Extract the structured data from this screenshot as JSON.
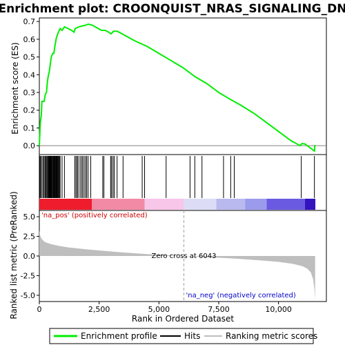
{
  "chart_data": {
    "type": "line",
    "title": "Enrichment plot: CROONQUIST_NRAS_SIGNALING_DN",
    "colors": {
      "enrichment": "#00ee00",
      "hits": "#000000",
      "metric_fill": "#bebebe",
      "zero_line": "#808080",
      "pos_label": "#cc0000",
      "neg_label": "#0000cc"
    },
    "es_panel": {
      "ylabel": "Enrichment score (ES)",
      "ylim": [
        -0.05,
        0.72
      ],
      "yticks": [
        0.0,
        0.1,
        0.2,
        0.3,
        0.4,
        0.5,
        0.6,
        0.7
      ],
      "ytick_labels": [
        "0.0",
        "0.1",
        "0.2",
        "0.3",
        "0.4",
        "0.5",
        "0.6",
        "0.7"
      ],
      "es_curve": [
        [
          0,
          0.0
        ],
        [
          40,
          0.13
        ],
        [
          80,
          0.17
        ],
        [
          110,
          0.25
        ],
        [
          200,
          0.25
        ],
        [
          250,
          0.29
        ],
        [
          300,
          0.3
        ],
        [
          330,
          0.35
        ],
        [
          370,
          0.39
        ],
        [
          420,
          0.42
        ],
        [
          460,
          0.46
        ],
        [
          500,
          0.5
        ],
        [
          560,
          0.52
        ],
        [
          610,
          0.52
        ],
        [
          650,
          0.56
        ],
        [
          700,
          0.6
        ],
        [
          740,
          0.62
        ],
        [
          800,
          0.64
        ],
        [
          870,
          0.66
        ],
        [
          950,
          0.65
        ],
        [
          1050,
          0.67
        ],
        [
          1200,
          0.66
        ],
        [
          1350,
          0.65
        ],
        [
          1450,
          0.64
        ],
        [
          1500,
          0.66
        ],
        [
          1650,
          0.67
        ],
        [
          1800,
          0.675
        ],
        [
          1950,
          0.68
        ],
        [
          2050,
          0.685
        ],
        [
          2200,
          0.68
        ],
        [
          2400,
          0.665
        ],
        [
          2600,
          0.65
        ],
        [
          2750,
          0.65
        ],
        [
          2900,
          0.64
        ],
        [
          3000,
          0.63
        ],
        [
          3100,
          0.645
        ],
        [
          3250,
          0.645
        ],
        [
          3400,
          0.635
        ],
        [
          3600,
          0.62
        ],
        [
          4000,
          0.59
        ],
        [
          4500,
          0.56
        ],
        [
          5000,
          0.52
        ],
        [
          5500,
          0.48
        ],
        [
          6000,
          0.44
        ],
        [
          6500,
          0.39
        ],
        [
          7000,
          0.35
        ],
        [
          7500,
          0.3
        ],
        [
          8000,
          0.26
        ],
        [
          8400,
          0.23
        ],
        [
          9000,
          0.18
        ],
        [
          9500,
          0.13
        ],
        [
          10000,
          0.08
        ],
        [
          10500,
          0.03
        ],
        [
          10900,
          0.0
        ],
        [
          10980,
          0.012
        ],
        [
          11100,
          0.01
        ],
        [
          11500,
          -0.03
        ],
        [
          11520,
          0.005
        ]
      ]
    },
    "hits": [
      30,
      60,
      110,
      160,
      200,
      240,
      270,
      310,
      340,
      370,
      390,
      410,
      430,
      450,
      470,
      490,
      510,
      530,
      560,
      590,
      620,
      650,
      680,
      700,
      720,
      750,
      780,
      810,
      840,
      870,
      950,
      1050,
      1480,
      1530,
      1580,
      1620,
      1700,
      1760,
      1810,
      1870,
      1930,
      1980,
      2040,
      2150,
      2650,
      2700,
      2980,
      3020,
      3080,
      3130,
      3250,
      3500,
      4300,
      4400,
      5300,
      6300,
      6500,
      6800,
      7700,
      8000,
      8150,
      10950,
      11500
    ],
    "rank_panel": {
      "ylabel": "Ranked list metric (PreRanked)",
      "ylim": [
        -5.8,
        5.8
      ],
      "yticks": [
        5.0,
        2.5,
        0.0,
        -2.5,
        -5.0
      ],
      "ytick_labels": [
        "5.0",
        "2.5",
        "0.0",
        "-2.5",
        "-5.0"
      ],
      "metric_curve": [
        [
          0,
          3.3
        ],
        [
          20,
          2.8
        ],
        [
          60,
          2.4
        ],
        [
          120,
          2.1
        ],
        [
          200,
          1.85
        ],
        [
          300,
          1.7
        ],
        [
          500,
          1.5
        ],
        [
          800,
          1.3
        ],
        [
          1200,
          1.1
        ],
        [
          1800,
          0.9
        ],
        [
          2500,
          0.7
        ],
        [
          3500,
          0.45
        ],
        [
          4500,
          0.25
        ],
        [
          5500,
          0.08
        ],
        [
          6043,
          0.0
        ],
        [
          7000,
          -0.15
        ],
        [
          8000,
          -0.3
        ],
        [
          9000,
          -0.5
        ],
        [
          10000,
          -0.75
        ],
        [
          10600,
          -1.0
        ],
        [
          11000,
          -1.3
        ],
        [
          11200,
          -1.6
        ],
        [
          11350,
          -2.1
        ],
        [
          11450,
          -3.0
        ],
        [
          11500,
          -4.2
        ],
        [
          11530,
          -5.6
        ]
      ],
      "zero_cross_label": "Zero cross at 6043",
      "zero_cross": 6043,
      "pos_label": "'na_pos' (positively correlated)",
      "neg_label": "'na_neg' (negatively correlated)"
    },
    "heatmap_bands": [
      {
        "from": 0,
        "to": 2200,
        "color": "#ee1c2c"
      },
      {
        "from": 2200,
        "to": 4400,
        "color": "#f28aa6"
      },
      {
        "from": 4400,
        "to": 6040,
        "color": "#f7c6e8"
      },
      {
        "from": 6040,
        "to": 7400,
        "color": "#dcdcf6"
      },
      {
        "from": 7400,
        "to": 8600,
        "color": "#b9b9f0"
      },
      {
        "from": 8600,
        "to": 9500,
        "color": "#9b9bec"
      },
      {
        "from": 9500,
        "to": 11100,
        "color": "#6a5ae2"
      },
      {
        "from": 11100,
        "to": 11540,
        "color": "#3414be"
      }
    ],
    "xaxis": {
      "xlabel": "Rank in Ordered Dataset",
      "xlim": [
        0,
        12000
      ],
      "xticks": [
        0,
        2500,
        5000,
        7500,
        10000
      ],
      "xtick_labels": [
        "0",
        "2,500",
        "5,000",
        "7,500",
        "10,000"
      ]
    },
    "legend": {
      "placement": "bottom",
      "items": [
        {
          "label": "Enrichment profile",
          "color": "#00ee00"
        },
        {
          "label": "Hits",
          "color": "#000000"
        },
        {
          "label": "Ranking metric scores",
          "color": "#bebebe"
        }
      ]
    }
  }
}
